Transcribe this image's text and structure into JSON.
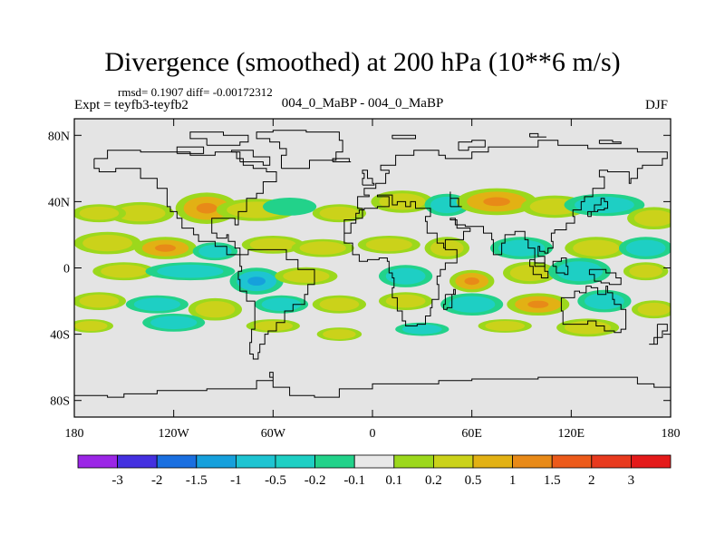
{
  "header": {
    "title": "Divergence (smoothed) at 200 hPa (10**6 m/s)",
    "stats": "rmsd= 0.1907 diff= -0.00172312",
    "experiment": "Expt = teyfb3-teyfb2",
    "case": "004_0_MaBP - 004_0_MaBP",
    "season": "DJF"
  },
  "chart_data": {
    "type": "heatmap",
    "title": "Divergence (smoothed) at 200 hPa (10**6 m/s)",
    "projection": "cylindrical equidistant",
    "xlim": [
      -180,
      180
    ],
    "ylim": [
      -90,
      90
    ],
    "x_ticks": [
      {
        "value": -180,
        "label": "180"
      },
      {
        "value": -120,
        "label": "120W"
      },
      {
        "value": -60,
        "label": "60W"
      },
      {
        "value": 0,
        "label": "0"
      },
      {
        "value": 60,
        "label": "60E"
      },
      {
        "value": 120,
        "label": "120E"
      },
      {
        "value": 180,
        "label": "180"
      }
    ],
    "y_ticks": [
      {
        "value": 80,
        "label": "80N"
      },
      {
        "value": 40,
        "label": "40N"
      },
      {
        "value": 0,
        "label": "0"
      },
      {
        "value": -40,
        "label": "40S"
      },
      {
        "value": -80,
        "label": "80S"
      }
    ],
    "background_color": "#e4e4e4",
    "colorbar": {
      "labels": [
        "-3",
        "-2",
        "-1.5",
        "-1",
        "-0.5",
        "-0.2",
        "-0.1",
        "0.1",
        "0.2",
        "0.5",
        "1",
        "1.5",
        "2",
        "3"
      ],
      "colors": [
        "#9b26e6",
        "#4430e0",
        "#1a6fe0",
        "#16a0dc",
        "#1ec4d2",
        "#1ecfc4",
        "#22d28a",
        "#e8e8e8",
        "#9cd81c",
        "#cbd21a",
        "#e2b114",
        "#e88a18",
        "#ec5a1a",
        "#e83a1e",
        "#e41a1a"
      ]
    },
    "features": [
      {
        "lon": -140,
        "lat": 33,
        "a": 15,
        "b": 5,
        "value": 0.35
      },
      {
        "lon": -165,
        "lat": 33,
        "a": 12,
        "b": 4,
        "value": 0.25
      },
      {
        "lon": -100,
        "lat": 36,
        "a": 14,
        "b": 7,
        "value": 0.6
      },
      {
        "lon": -70,
        "lat": 35,
        "a": 18,
        "b": 5,
        "value": 0.3
      },
      {
        "lon": -50,
        "lat": 37,
        "a": 12,
        "b": 4,
        "value": -0.15
      },
      {
        "lon": -20,
        "lat": 33,
        "a": 12,
        "b": 4,
        "value": 0.3
      },
      {
        "lon": 18,
        "lat": 40,
        "a": 14,
        "b": 5,
        "value": 0.35
      },
      {
        "lon": 45,
        "lat": 38,
        "a": 10,
        "b": 5,
        "value": -0.3
      },
      {
        "lon": 75,
        "lat": 40,
        "a": 18,
        "b": 6,
        "value": 0.5
      },
      {
        "lon": 110,
        "lat": 37,
        "a": 15,
        "b": 5,
        "value": 0.3
      },
      {
        "lon": 140,
        "lat": 38,
        "a": 18,
        "b": 5,
        "value": -0.3
      },
      {
        "lon": 170,
        "lat": 30,
        "a": 12,
        "b": 5,
        "value": 0.25
      },
      {
        "lon": -160,
        "lat": 15,
        "a": 15,
        "b": 5,
        "value": 0.3
      },
      {
        "lon": -125,
        "lat": 12,
        "a": 14,
        "b": 5,
        "value": 0.55
      },
      {
        "lon": -95,
        "lat": 10,
        "a": 10,
        "b": 4,
        "value": -0.25
      },
      {
        "lon": -60,
        "lat": 14,
        "a": 14,
        "b": 4,
        "value": 0.3
      },
      {
        "lon": -30,
        "lat": 12,
        "a": 14,
        "b": 4,
        "value": 0.3
      },
      {
        "lon": 10,
        "lat": 14,
        "a": 14,
        "b": 4,
        "value": 0.3
      },
      {
        "lon": 45,
        "lat": 12,
        "a": 10,
        "b": 5,
        "value": 0.45
      },
      {
        "lon": 90,
        "lat": 12,
        "a": 14,
        "b": 5,
        "value": -0.3
      },
      {
        "lon": 135,
        "lat": 12,
        "a": 14,
        "b": 5,
        "value": 0.35
      },
      {
        "lon": 165,
        "lat": 12,
        "a": 12,
        "b": 5,
        "value": -0.3
      },
      {
        "lon": -150,
        "lat": -2,
        "a": 14,
        "b": 4,
        "value": 0.3
      },
      {
        "lon": -110,
        "lat": -2,
        "a": 20,
        "b": 4,
        "value": -0.3
      },
      {
        "lon": -70,
        "lat": -8,
        "a": 12,
        "b": 6,
        "value": -0.6
      },
      {
        "lon": -40,
        "lat": -5,
        "a": 14,
        "b": 4,
        "value": 0.35
      },
      {
        "lon": 20,
        "lat": -5,
        "a": 12,
        "b": 5,
        "value": -0.3
      },
      {
        "lon": 60,
        "lat": -8,
        "a": 10,
        "b": 5,
        "value": 0.7
      },
      {
        "lon": 95,
        "lat": -3,
        "a": 12,
        "b": 5,
        "value": 0.4
      },
      {
        "lon": 125,
        "lat": -2,
        "a": 14,
        "b": 6,
        "value": -0.4
      },
      {
        "lon": 165,
        "lat": -2,
        "a": 10,
        "b": 4,
        "value": 0.3
      },
      {
        "lon": -165,
        "lat": -20,
        "a": 12,
        "b": 4,
        "value": 0.3
      },
      {
        "lon": -130,
        "lat": -22,
        "a": 14,
        "b": 4,
        "value": -0.3
      },
      {
        "lon": -95,
        "lat": -25,
        "a": 12,
        "b": 5,
        "value": 0.35
      },
      {
        "lon": -55,
        "lat": -22,
        "a": 12,
        "b": 4,
        "value": -0.25
      },
      {
        "lon": -20,
        "lat": -22,
        "a": 12,
        "b": 4,
        "value": 0.3
      },
      {
        "lon": 20,
        "lat": -20,
        "a": 12,
        "b": 4,
        "value": 0.3
      },
      {
        "lon": 60,
        "lat": -22,
        "a": 14,
        "b": 5,
        "value": -0.3
      },
      {
        "lon": 100,
        "lat": -22,
        "a": 14,
        "b": 5,
        "value": 0.55
      },
      {
        "lon": 140,
        "lat": -20,
        "a": 12,
        "b": 5,
        "value": -0.35
      },
      {
        "lon": 170,
        "lat": -25,
        "a": 10,
        "b": 4,
        "value": 0.4
      },
      {
        "lon": -170,
        "lat": -35,
        "a": 10,
        "b": 3,
        "value": 0.25
      },
      {
        "lon": -120,
        "lat": -33,
        "a": 14,
        "b": 4,
        "value": -0.25
      },
      {
        "lon": -60,
        "lat": -35,
        "a": 12,
        "b": 3,
        "value": 0.3
      },
      {
        "lon": -20,
        "lat": -40,
        "a": 10,
        "b": 3,
        "value": 0.35
      },
      {
        "lon": 30,
        "lat": -37,
        "a": 12,
        "b": 3,
        "value": -0.25
      },
      {
        "lon": 80,
        "lat": -35,
        "a": 12,
        "b": 3,
        "value": 0.3
      },
      {
        "lon": 130,
        "lat": -36,
        "a": 14,
        "b": 4,
        "value": 0.3
      }
    ]
  }
}
